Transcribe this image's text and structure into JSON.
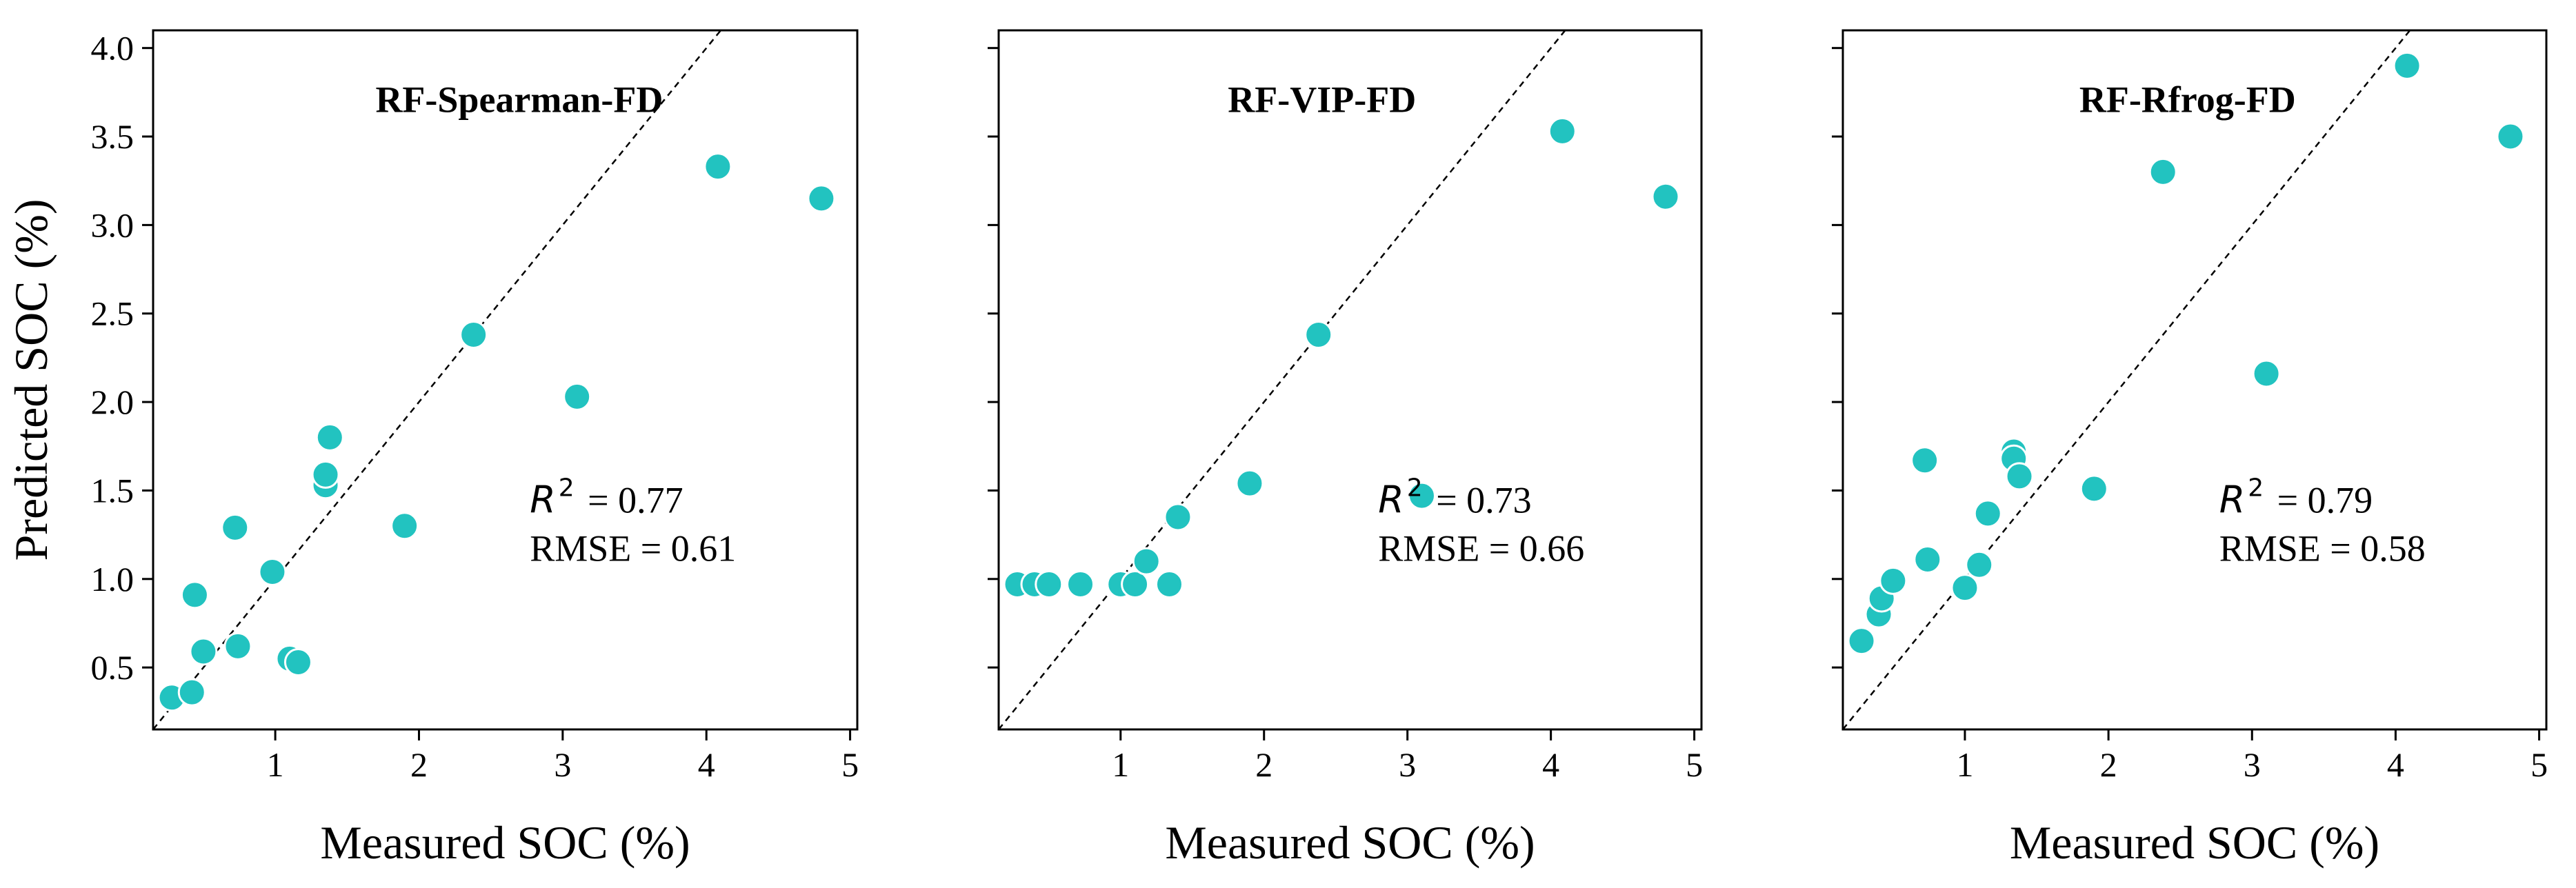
{
  "colors": {
    "point": "#22c3c0",
    "frame": "#000000",
    "background": "#ffffff"
  },
  "chart_data": [
    {
      "type": "scatter",
      "title": "RF-Spearman-FD",
      "xlabel": "Measured SOC (%)",
      "ylabel": "Predicted SOC (%)",
      "xlim": [
        0.15,
        5.05
      ],
      "ylim": [
        0.15,
        4.1
      ],
      "xticks": [
        1,
        2,
        3,
        4,
        5
      ],
      "yticks": [
        0.5,
        1.0,
        1.5,
        2.0,
        2.5,
        3.0,
        3.5,
        4.0
      ],
      "ytick_labels": [
        "0.5",
        "1.0",
        "1.5",
        "2.0",
        "2.5",
        "3.0",
        "3.5",
        "4.0"
      ],
      "show_yticklabels": true,
      "reference_line": "1:1 dashed",
      "r2_label": "R",
      "r2_exp": "2",
      "r2_text": "= 0.77",
      "rmse_text": "RMSE = 0.61",
      "x": [
        0.28,
        0.42,
        0.5,
        0.44,
        0.74,
        0.72,
        0.98,
        1.1,
        1.16,
        1.35,
        1.35,
        1.38,
        1.9,
        2.38,
        3.1,
        4.08,
        4.8
      ],
      "y": [
        0.33,
        0.36,
        0.59,
        0.91,
        0.62,
        1.29,
        1.04,
        0.55,
        0.53,
        1.53,
        1.59,
        1.8,
        1.3,
        2.38,
        2.03,
        3.33,
        3.15
      ]
    },
    {
      "type": "scatter",
      "title": "RF-VIP-FD",
      "xlabel": "Measured SOC (%)",
      "ylabel": "",
      "xlim": [
        0.15,
        5.05
      ],
      "ylim": [
        0.15,
        4.1
      ],
      "xticks": [
        1,
        2,
        3,
        4,
        5
      ],
      "yticks": [
        0.5,
        1.0,
        1.5,
        2.0,
        2.5,
        3.0,
        3.5,
        4.0
      ],
      "ytick_labels": [],
      "show_yticklabels": false,
      "reference_line": "1:1 dashed",
      "r2_label": "R",
      "r2_exp": "2",
      "r2_text": "= 0.73",
      "rmse_text": "RMSE = 0.66",
      "x": [
        0.28,
        0.4,
        0.5,
        0.72,
        1.0,
        1.1,
        1.18,
        1.34,
        1.4,
        1.9,
        2.38,
        3.1,
        4.08,
        4.8
      ],
      "y": [
        0.97,
        0.97,
        0.97,
        0.97,
        0.97,
        0.97,
        1.1,
        0.97,
        1.35,
        1.54,
        2.38,
        1.47,
        3.53,
        3.16
      ]
    },
    {
      "type": "scatter",
      "title": "RF-Rfrog-FD",
      "xlabel": "Measured SOC (%)",
      "ylabel": "",
      "xlim": [
        0.15,
        5.05
      ],
      "ylim": [
        0.15,
        4.1
      ],
      "xticks": [
        1,
        2,
        3,
        4,
        5
      ],
      "yticks": [
        0.5,
        1.0,
        1.5,
        2.0,
        2.5,
        3.0,
        3.5,
        4.0
      ],
      "ytick_labels": [],
      "show_yticklabels": false,
      "reference_line": "1:1 dashed",
      "r2_label": "R",
      "r2_exp": "2",
      "r2_text": "= 0.79",
      "rmse_text": "RMSE = 0.58",
      "x": [
        0.28,
        0.4,
        0.42,
        0.5,
        0.72,
        0.74,
        1.0,
        1.1,
        1.16,
        1.34,
        1.34,
        1.38,
        1.9,
        2.38,
        3.1,
        4.08,
        4.8
      ],
      "y": [
        0.65,
        0.8,
        0.89,
        0.99,
        1.67,
        1.11,
        0.95,
        1.08,
        1.37,
        1.72,
        1.68,
        1.58,
        1.51,
        3.3,
        2.16,
        3.9,
        3.5
      ]
    }
  ]
}
